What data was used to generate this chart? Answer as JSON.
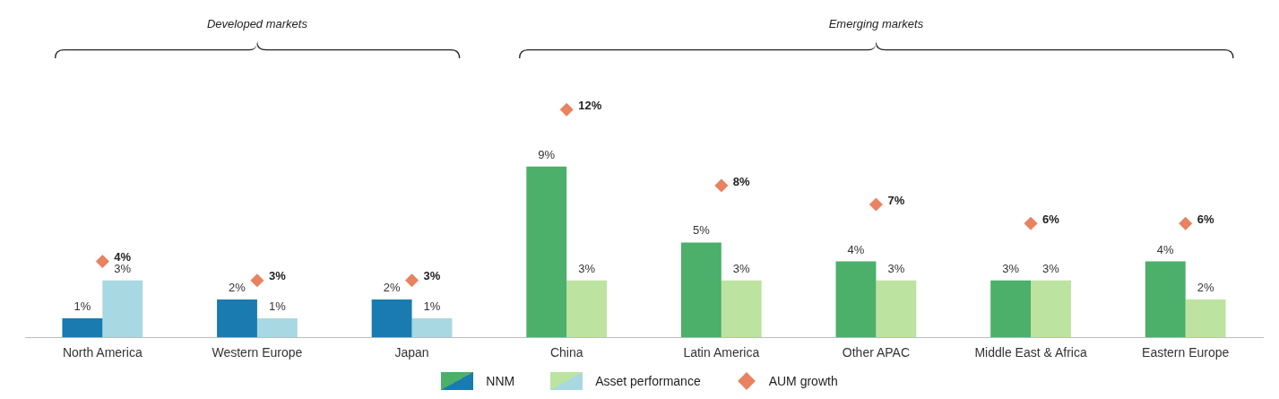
{
  "chart_data": {
    "type": "bar",
    "categories": [
      "North America",
      "Western Europe",
      "Japan",
      "China",
      "Latin America",
      "Other APAC",
      "Middle East & Africa",
      "Eastern Europe"
    ],
    "series": [
      {
        "name": "NNM",
        "colors": [
          "#1a7bb0",
          "#1a7bb0",
          "#1a7bb0",
          "#4caf6a",
          "#4caf6a",
          "#4caf6a",
          "#4caf6a",
          "#4caf6a"
        ],
        "values": [
          1,
          2,
          2,
          9,
          5,
          4,
          3,
          4
        ],
        "value_labels": [
          "1%",
          "2%",
          "2%",
          "9%",
          "5%",
          "4%",
          "3%",
          "4%"
        ]
      },
      {
        "name": "Asset performance",
        "colors": [
          "#a8d8e2",
          "#a8d8e2",
          "#a8d8e2",
          "#bde3a0",
          "#bde3a0",
          "#bde3a0",
          "#bde3a0",
          "#bde3a0"
        ],
        "values": [
          3,
          1,
          1,
          3,
          3,
          3,
          3,
          2
        ],
        "value_labels": [
          "3%",
          "1%",
          "1%",
          "3%",
          "3%",
          "3%",
          "3%",
          "2%"
        ]
      },
      {
        "name": "AUM growth",
        "type": "scatter",
        "color": "#e8825f",
        "marker": "diamond",
        "values": [
          4,
          3,
          3,
          12,
          8,
          7,
          6,
          6
        ],
        "value_labels": [
          "4%",
          "3%",
          "3%",
          "12%",
          "8%",
          "7%",
          "6%",
          "6%"
        ]
      }
    ],
    "annotations": [
      "Developed markets",
      "Emerging markets"
    ],
    "legend": "bottom",
    "grid": false
  }
}
